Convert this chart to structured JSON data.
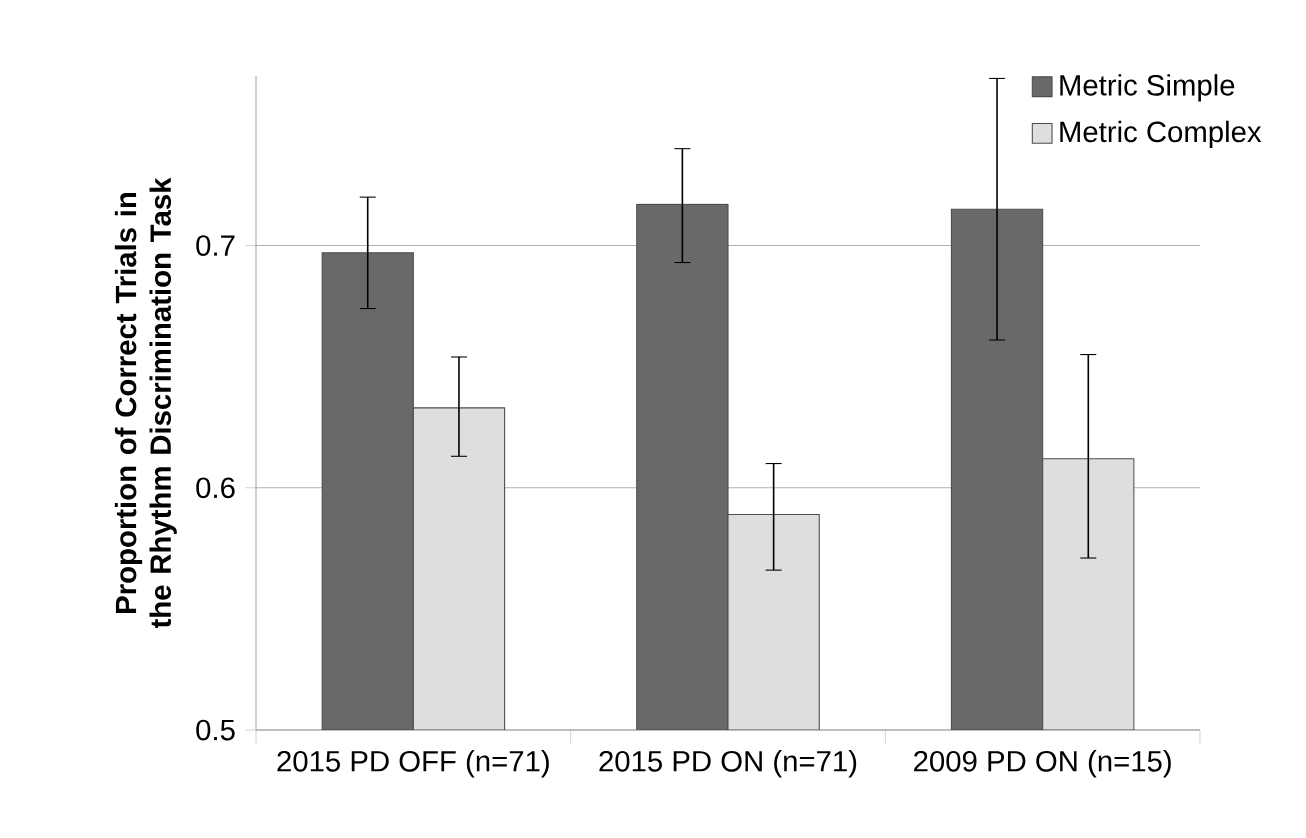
{
  "chart_data": {
    "type": "bar",
    "ylabel": "Proportion of Correct Trials in the Rhythm Discrimination Task",
    "categories": [
      "2015 PD OFF (n=71)",
      "2015 PD ON (n=71)",
      "2009 PD ON (n=15)"
    ],
    "series": [
      {
        "name": "Metric Simple",
        "color": "#696969",
        "values": [
          0.697,
          0.717,
          0.715
        ],
        "errors": [
          [
            0.674,
            0.72
          ],
          [
            0.693,
            0.74
          ],
          [
            0.661,
            0.769
          ]
        ]
      },
      {
        "name": "Metric Complex",
        "color": "#dedede",
        "values": [
          0.633,
          0.589,
          0.612
        ],
        "errors": [
          [
            0.613,
            0.654
          ],
          [
            0.566,
            0.61
          ],
          [
            0.571,
            0.655
          ]
        ]
      }
    ],
    "ylim": [
      0.5,
      0.77
    ],
    "yticks": [
      0.5,
      0.6,
      0.7
    ],
    "grid": "y",
    "legend": "top right"
  }
}
